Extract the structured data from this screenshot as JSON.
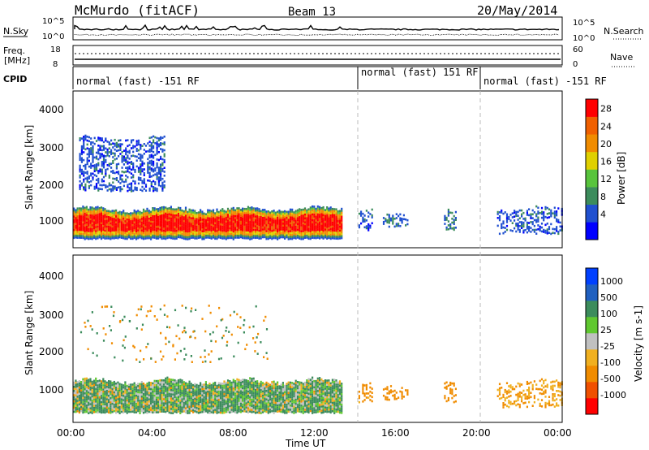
{
  "header": {
    "station": "McMurdo (fitACF)",
    "beam": "Beam 13",
    "date": "20/May/2014"
  },
  "top_panels": {
    "nsky_label": "N.Sky",
    "nsearch_label": "N.Search",
    "noise_ticks": [
      "10^5",
      "10^0"
    ],
    "noise_ticks_right": [
      "10^5",
      "10^0"
    ],
    "freq_label_1": "Freq.",
    "freq_label_2": "[MHz]",
    "freq_ticks": [
      "18",
      "8"
    ],
    "nave_label": "Nave",
    "nave_ticks": [
      "60",
      "0"
    ],
    "cpid_label": "CPID",
    "cpid_segments": [
      "normal (fast) -151 RF",
      "normal (fast) 151 RF",
      "normal (fast) -151 RF"
    ]
  },
  "axes": {
    "ylabel": "Slant Range [km]",
    "xlabel": "Time UT",
    "y_ticks": [
      "4000",
      "3000",
      "2000",
      "1000"
    ],
    "x_ticks": [
      "00:00",
      "04:00",
      "08:00",
      "12:00",
      "16:00",
      "20:00",
      "00:00"
    ]
  },
  "colorbars": {
    "power": {
      "label": "Power [dB]",
      "ticks": [
        "28",
        "24",
        "20",
        "16",
        "12",
        "8",
        "4"
      ],
      "colors": [
        "#0000ff",
        "#2050d0",
        "#3c8c5c",
        "#58c43c",
        "#e0d000",
        "#f08c00",
        "#f06000",
        "#ff0000"
      ]
    },
    "velocity": {
      "label": "Velocity [m s-1]",
      "ticks": [
        "1000",
        "500",
        "100",
        "25",
        "-25",
        "-100",
        "-500",
        "-1000"
      ],
      "colors": [
        "#ff0000",
        "#f05000",
        "#f08c00",
        "#f0b020",
        "#c0c0c0",
        "#60c830",
        "#3c8c5c",
        "#2060c0",
        "#0040ff"
      ]
    }
  },
  "chart_data": [
    {
      "type": "heatmap",
      "title": "Power [dB]",
      "xlabel": "Time UT",
      "ylabel": "Slant Range [km]",
      "xlim": [
        0,
        24
      ],
      "ylim": [
        180,
        4600
      ],
      "grid": false,
      "scatter_regions": [
        {
          "t_start": 0.0,
          "t_end": 13.2,
          "range_min": 450,
          "range_max": 1300,
          "typical_power_db": 28
        },
        {
          "t_start": 0.3,
          "t_end": 4.5,
          "range_min": 1800,
          "range_max": 3300,
          "typical_power_db": 6
        },
        {
          "t_start": 14.0,
          "t_end": 14.7,
          "range_min": 700,
          "range_max": 1300,
          "typical_power_db": 6
        },
        {
          "t_start": 15.2,
          "t_end": 16.4,
          "range_min": 800,
          "range_max": 1100,
          "typical_power_db": 7
        },
        {
          "t_start": 18.2,
          "t_end": 18.8,
          "range_min": 700,
          "range_max": 1300,
          "typical_power_db": 8
        },
        {
          "t_start": 20.8,
          "t_end": 24.0,
          "range_min": 600,
          "range_max": 1300,
          "typical_power_db": 6
        }
      ]
    },
    {
      "type": "heatmap",
      "title": "Velocity [m s-1]",
      "xlabel": "Time UT",
      "ylabel": "Slant Range [km]",
      "xlim": [
        0,
        24
      ],
      "ylim": [
        180,
        4600
      ],
      "grid": false,
      "scatter_regions": [
        {
          "t_start": 0.0,
          "t_end": 13.2,
          "range_min": 450,
          "range_max": 1300,
          "typical_velocity": 200
        },
        {
          "t_start": 14.0,
          "t_end": 14.7,
          "range_min": 700,
          "range_max": 1300,
          "typical_velocity": -150
        },
        {
          "t_start": 15.2,
          "t_end": 16.4,
          "range_min": 800,
          "range_max": 1100,
          "typical_velocity": -200
        },
        {
          "t_start": 18.2,
          "t_end": 18.8,
          "range_min": 700,
          "range_max": 1300,
          "typical_velocity": -250
        },
        {
          "t_start": 20.8,
          "t_end": 24.0,
          "range_min": 600,
          "range_max": 1300,
          "typical_velocity": -100
        }
      ]
    }
  ]
}
